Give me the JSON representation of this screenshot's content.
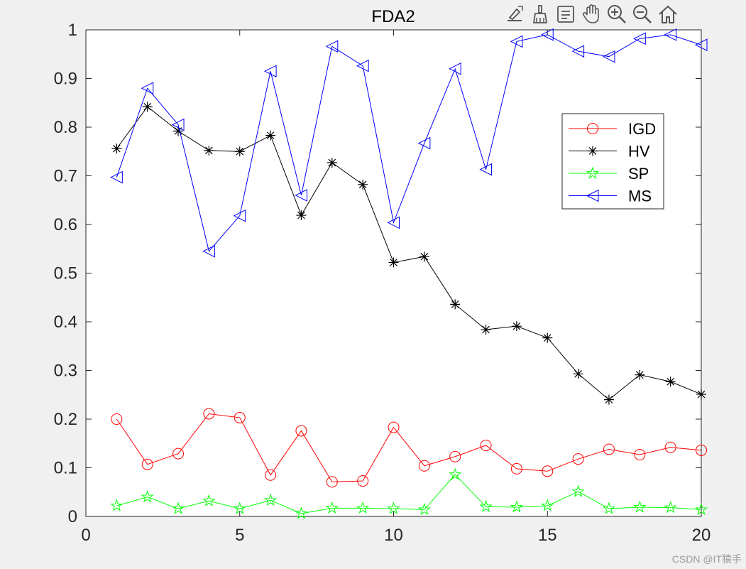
{
  "toolbar": {
    "buttons": [
      {
        "icon": "edit-plot-icon"
      },
      {
        "icon": "brush-icon"
      },
      {
        "icon": "data-tips-icon"
      },
      {
        "icon": "pan-hand-icon"
      },
      {
        "icon": "zoom-in-icon"
      },
      {
        "icon": "zoom-out-icon"
      },
      {
        "icon": "home-restore-view-icon"
      }
    ]
  },
  "watermark": "CSDN @IT猿手",
  "chart_data": {
    "type": "line",
    "title": "FDA2",
    "xlabel": "",
    "ylabel": "",
    "xlim": [
      0,
      20
    ],
    "ylim": [
      0,
      1
    ],
    "xticks": [
      "0",
      "5",
      "10",
      "15",
      "20"
    ],
    "xtick_values": [
      0,
      5,
      10,
      15,
      20
    ],
    "yticks": [
      "0",
      "0.1",
      "0.2",
      "0.3",
      "0.4",
      "0.5",
      "0.6",
      "0.7",
      "0.8",
      "0.9",
      "1"
    ],
    "ytick_values": [
      0,
      0.1,
      0.2,
      0.3,
      0.4,
      0.5,
      0.6,
      0.7,
      0.8,
      0.9,
      1
    ],
    "grid": false,
    "legend_position": "top-right",
    "x": [
      1,
      2,
      3,
      4,
      5,
      6,
      7,
      8,
      9,
      10,
      11,
      12,
      13,
      14,
      15,
      16,
      17,
      18,
      19,
      20
    ],
    "series": [
      {
        "name": "IGD",
        "color": "#ff0000",
        "marker": "circle",
        "values": [
          0.2,
          0.107,
          0.129,
          0.211,
          0.203,
          0.085,
          0.176,
          0.071,
          0.073,
          0.183,
          0.104,
          0.123,
          0.146,
          0.098,
          0.093,
          0.118,
          0.138,
          0.127,
          0.142,
          0.136
        ]
      },
      {
        "name": "HV",
        "color": "#000000",
        "marker": "asterisk",
        "values": [
          0.756,
          0.842,
          0.792,
          0.752,
          0.75,
          0.783,
          0.619,
          0.727,
          0.682,
          0.522,
          0.534,
          0.436,
          0.384,
          0.391,
          0.367,
          0.293,
          0.24,
          0.291,
          0.277,
          0.251
        ]
      },
      {
        "name": "SP",
        "color": "#00ff00",
        "marker": "star",
        "values": [
          0.022,
          0.04,
          0.016,
          0.032,
          0.016,
          0.033,
          0.006,
          0.017,
          0.017,
          0.016,
          0.014,
          0.086,
          0.02,
          0.019,
          0.022,
          0.051,
          0.016,
          0.019,
          0.018,
          0.014
        ]
      },
      {
        "name": "MS",
        "color": "#0000ff",
        "marker": "triangle-left",
        "values": [
          0.697,
          0.88,
          0.805,
          0.545,
          0.618,
          0.915,
          0.66,
          0.966,
          0.926,
          0.604,
          0.767,
          0.92,
          0.713,
          0.976,
          0.99,
          0.956,
          0.945,
          0.982,
          0.99,
          0.969
        ]
      }
    ]
  }
}
